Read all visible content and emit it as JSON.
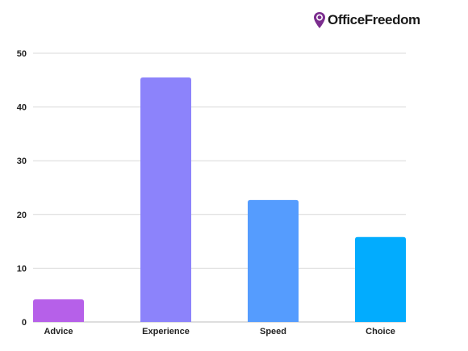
{
  "brand": {
    "name": "OfficeFreedom",
    "icon": "location-pin-icon",
    "icon_color": "#7b2d8e"
  },
  "chart_data": {
    "type": "bar",
    "title": "",
    "xlabel": "",
    "ylabel": "",
    "categories": [
      "Advice",
      "Experience",
      "Speed",
      "Choice"
    ],
    "values": [
      4.2,
      45.5,
      22.7,
      15.8
    ],
    "colors": [
      "#b660e9",
      "#8c83fb",
      "#559cfe",
      "#02acfe"
    ],
    "ylim": [
      0,
      50
    ],
    "yticks": [
      0,
      10,
      20,
      30,
      40,
      50
    ],
    "grid": true,
    "legend": "none"
  }
}
